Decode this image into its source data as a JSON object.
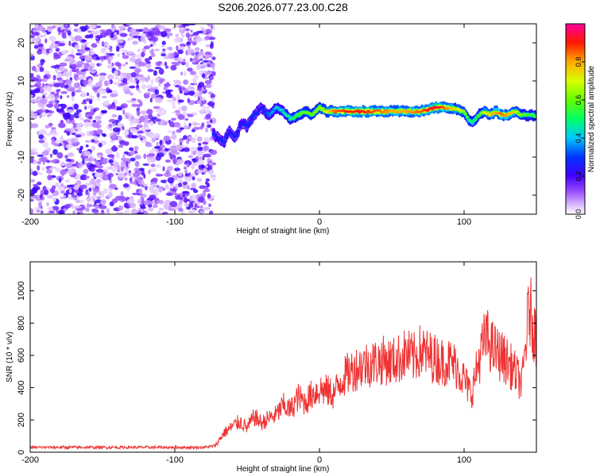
{
  "chart_data": [
    {
      "type": "heatmap",
      "title": "S206.2026.077.23.00.C28",
      "xlabel": "Height of straight line (km)",
      "ylabel": "Frequency (Hz)",
      "xlim": [
        -200,
        150
      ],
      "ylim": [
        -25,
        25
      ],
      "xticks": [
        -200,
        -100,
        0,
        100
      ],
      "yticks": [
        -20,
        -10,
        0,
        10,
        20
      ],
      "colorbar": {
        "label": "Normalized spectral amplitude",
        "range": [
          0,
          1
        ],
        "ticks": [
          "0.0",
          "0.2",
          "0.4",
          "0.6",
          "0.8"
        ]
      },
      "noise_region": {
        "x_range": [
          -200,
          -73
        ],
        "y_range": [
          -25,
          25
        ]
      },
      "signal_ridge": {
        "x": [
          -73,
          -70,
          -66,
          -62,
          -58,
          -54,
          -50,
          -45,
          -40,
          -35,
          -30,
          -25,
          -20,
          -15,
          -10,
          -5,
          0,
          5,
          10,
          20,
          30,
          40,
          50,
          60,
          70,
          80,
          90,
          100,
          103,
          106,
          110,
          114,
          118,
          122,
          126,
          130,
          135,
          140,
          145,
          150
        ],
        "freq": [
          -4,
          -5,
          -6,
          -3,
          -5,
          -1,
          -2,
          1,
          3,
          1,
          3,
          2,
          0,
          1,
          2,
          1,
          3,
          2,
          2,
          2,
          2,
          2,
          2,
          2,
          2,
          3,
          3,
          2,
          0,
          -1,
          1,
          2,
          1,
          2,
          1,
          1,
          2,
          1,
          1,
          1
        ],
        "amplitude": [
          0.3,
          0.25,
          0.3,
          0.25,
          0.3,
          0.25,
          0.3,
          0.3,
          0.25,
          0.35,
          0.4,
          0.45,
          0.5,
          0.55,
          0.6,
          0.6,
          0.65,
          0.7,
          0.85,
          0.9,
          0.9,
          0.85,
          0.8,
          0.8,
          0.85,
          0.95,
          0.8,
          0.65,
          0.5,
          0.5,
          0.55,
          0.7,
          0.75,
          0.8,
          0.85,
          0.8,
          0.75,
          0.6,
          0.55,
          0.55
        ]
      }
    },
    {
      "type": "line",
      "xlabel": "Height of straight line (km)",
      "ylabel": "SNR (10 * v/v)",
      "xlim": [
        -200,
        150
      ],
      "ylim": [
        0,
        1180
      ],
      "xticks": [
        -200,
        -100,
        0,
        100
      ],
      "yticks": [
        0,
        200,
        400,
        600,
        800,
        1000
      ],
      "color": "#ee3333",
      "series": [
        {
          "name": "SNR",
          "x": [
            -200,
            -190,
            -180,
            -170,
            -160,
            -150,
            -140,
            -130,
            -120,
            -110,
            -100,
            -90,
            -80,
            -72,
            -66,
            -60,
            -55,
            -50,
            -45,
            -40,
            -35,
            -30,
            -25,
            -20,
            -15,
            -10,
            -5,
            0,
            5,
            10,
            15,
            20,
            25,
            30,
            35,
            40,
            45,
            50,
            55,
            60,
            65,
            70,
            75,
            80,
            85,
            90,
            95,
            100,
            105,
            110,
            115,
            120,
            125,
            130,
            135,
            140,
            145,
            150
          ],
          "y": [
            30,
            30,
            30,
            30,
            30,
            30,
            30,
            30,
            30,
            30,
            30,
            30,
            30,
            40,
            120,
            160,
            190,
            150,
            220,
            180,
            210,
            230,
            290,
            260,
            340,
            310,
            360,
            390,
            380,
            360,
            450,
            490,
            520,
            540,
            550,
            560,
            570,
            560,
            580,
            610,
            580,
            630,
            600,
            580,
            560,
            560,
            530,
            450,
            360,
            560,
            720,
            640,
            600,
            560,
            500,
            420,
            900,
            700
          ]
        }
      ]
    }
  ]
}
